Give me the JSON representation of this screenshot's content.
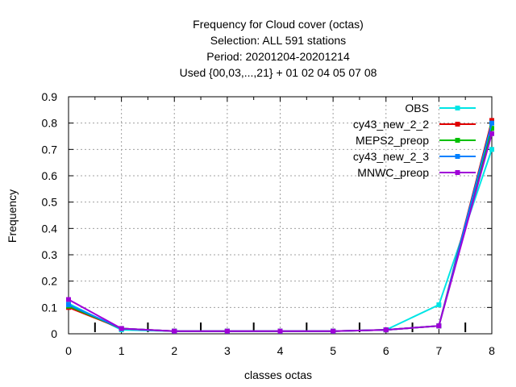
{
  "chart_data": {
    "type": "line",
    "title_lines": [
      "Frequency  for Cloud cover (octas)",
      "Selection: ALL    591 stations",
      "Period: 20201204-20201214",
      "Used {00,03,...,21} + 01 02 04 05 07 08"
    ],
    "xlabel": "classes octas",
    "ylabel": "Frequency",
    "xlim": [
      0,
      8
    ],
    "ylim": [
      0,
      0.9
    ],
    "x_ticks": [
      "0",
      "1",
      "2",
      "3",
      "4",
      "5",
      "6",
      "7",
      "8"
    ],
    "y_ticks": [
      "0",
      "0.1",
      "0.2",
      "0.3",
      "0.4",
      "0.5",
      "0.6",
      "0.7",
      "0.8",
      "0.9"
    ],
    "grid": true,
    "legend_position": "top-right",
    "x": [
      0,
      1,
      2,
      3,
      4,
      5,
      6,
      7,
      8
    ],
    "series": [
      {
        "name": "OBS",
        "color": "#00e5e5",
        "values": [
          0.115,
          0.015,
          0.01,
          0.01,
          0.01,
          0.01,
          0.015,
          0.11,
          0.7
        ]
      },
      {
        "name": "cy43_new_2_2",
        "color": "#e00000",
        "values": [
          0.1,
          0.02,
          0.01,
          0.01,
          0.01,
          0.01,
          0.015,
          0.03,
          0.81
        ]
      },
      {
        "name": "MEPS2_preop",
        "color": "#00c000",
        "values": [
          0.105,
          0.02,
          0.01,
          0.01,
          0.01,
          0.01,
          0.015,
          0.03,
          0.78
        ]
      },
      {
        "name": "cy43_new_2_3",
        "color": "#0080ff",
        "values": [
          0.11,
          0.02,
          0.01,
          0.01,
          0.01,
          0.01,
          0.015,
          0.03,
          0.8
        ]
      },
      {
        "name": "MNWC_preop",
        "color": "#a000d8",
        "values": [
          0.13,
          0.02,
          0.01,
          0.01,
          0.01,
          0.01,
          0.015,
          0.03,
          0.76
        ]
      }
    ]
  }
}
